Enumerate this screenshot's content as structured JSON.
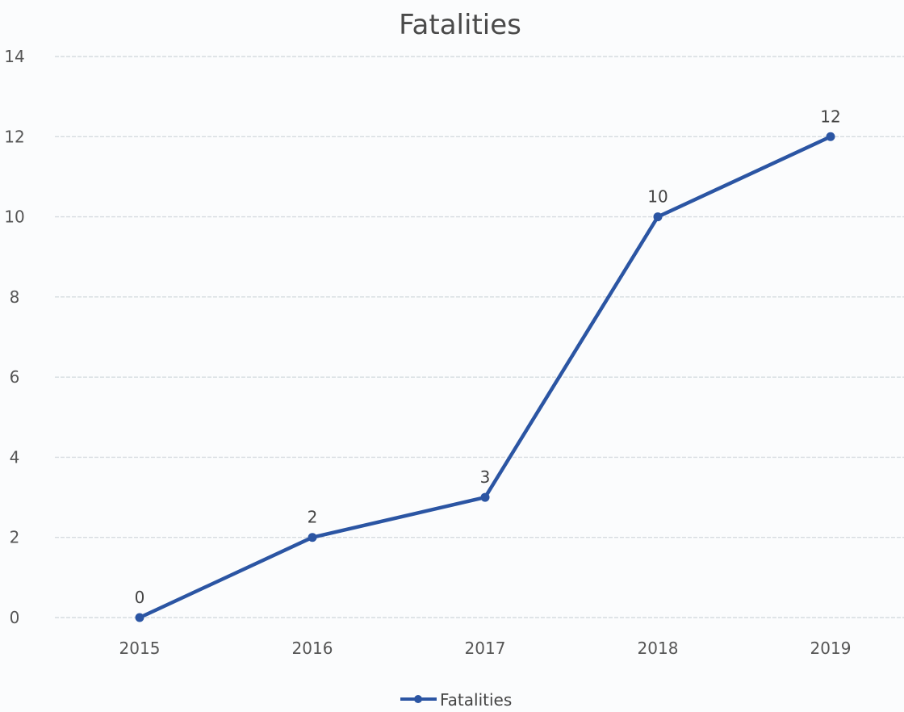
{
  "chart_data": {
    "type": "line",
    "title": "Fatalities",
    "xlabel": "",
    "ylabel": "",
    "categories": [
      "2015",
      "2016",
      "2017",
      "2018",
      "2019"
    ],
    "series": [
      {
        "name": "Fatalities",
        "values": [
          0,
          2,
          3,
          10,
          12
        ],
        "color": "#2b55a3"
      }
    ],
    "data_labels": [
      "0",
      "2",
      "3",
      "10",
      "12"
    ],
    "y_ticks": [
      "0",
      "2",
      "4",
      "6",
      "8",
      "10",
      "12",
      "14"
    ],
    "ylim": [
      0,
      14
    ],
    "grid": true,
    "legend": {
      "position": "bottom",
      "entries": [
        "Fatalities"
      ]
    }
  }
}
